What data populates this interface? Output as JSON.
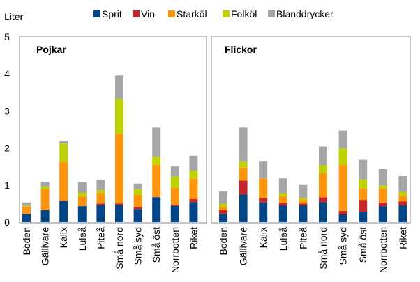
{
  "chart_data": [
    {
      "type": "bar",
      "stacked": true,
      "title": "Pojkar",
      "ylabel": "Liter",
      "ylim": [
        0,
        5
      ],
      "yticks": [
        "0",
        "1",
        "2",
        "3",
        "4",
        "5"
      ],
      "categories": [
        "Boden",
        "Gällivare",
        "Kalix",
        "Luleå",
        "Piteå",
        "Små nord",
        "Små syd",
        "Små öst",
        "Norrbotten",
        "Riket"
      ],
      "series": [
        {
          "name": "Sprit",
          "color": "#004586",
          "values": [
            0.22,
            0.32,
            0.57,
            0.43,
            0.46,
            0.46,
            0.35,
            0.67,
            0.44,
            0.54
          ]
        },
        {
          "name": "Vin",
          "color": "#c5252b",
          "values": [
            0.0,
            0.0,
            0.02,
            0.0,
            0.04,
            0.04,
            0.05,
            0.01,
            0.03,
            0.08
          ]
        },
        {
          "name": "Starköl",
          "color": "#ff950e",
          "values": [
            0.2,
            0.57,
            1.04,
            0.27,
            0.28,
            1.88,
            0.34,
            0.86,
            0.45,
            0.55
          ]
        },
        {
          "name": "Folköl",
          "color": "#bfd200",
          "values": [
            0.02,
            0.07,
            0.49,
            0.09,
            0.08,
            0.94,
            0.14,
            0.22,
            0.31,
            0.22
          ]
        },
        {
          "name": "Blanddrycker",
          "color": "#a6a6a6",
          "values": [
            0.09,
            0.13,
            0.07,
            0.29,
            0.28,
            0.64,
            0.16,
            0.79,
            0.27,
            0.4
          ]
        }
      ]
    },
    {
      "type": "bar",
      "stacked": true,
      "title": "Flickor",
      "ylim": [
        0,
        5
      ],
      "categories": [
        "Boden",
        "Gällivare",
        "Kalix",
        "Luleå",
        "Piteå",
        "Små nord",
        "Små syd",
        "Små öst",
        "Norrbotten",
        "Riket"
      ],
      "series": [
        {
          "name": "Sprit",
          "color": "#004586",
          "values": [
            0.22,
            0.75,
            0.53,
            0.45,
            0.45,
            0.54,
            0.21,
            0.28,
            0.43,
            0.45
          ]
        },
        {
          "name": "Vin",
          "color": "#c5252b",
          "values": [
            0.1,
            0.37,
            0.12,
            0.07,
            0.05,
            0.13,
            0.09,
            0.32,
            0.1,
            0.11
          ]
        },
        {
          "name": "Starköl",
          "color": "#ff950e",
          "values": [
            0.1,
            0.35,
            0.53,
            0.18,
            0.1,
            0.65,
            1.24,
            0.3,
            0.37,
            0.15
          ]
        },
        {
          "name": "Folköl",
          "color": "#bfd200",
          "values": [
            0.07,
            0.17,
            0.0,
            0.08,
            0.05,
            0.21,
            0.45,
            0.25,
            0.09,
            0.1
          ]
        },
        {
          "name": "Blanddrycker",
          "color": "#a6a6a6",
          "values": [
            0.34,
            0.91,
            0.47,
            0.4,
            0.37,
            0.51,
            0.48,
            0.53,
            0.44,
            0.43
          ]
        }
      ]
    }
  ]
}
